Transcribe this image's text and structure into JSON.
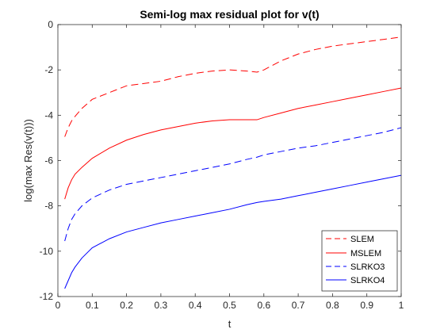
{
  "chart_data": {
    "type": "line",
    "title": "Semi-log max residual plot for v(t)",
    "xlabel": "t",
    "ylabel": "log(max Res(v(t)))",
    "xlim": [
      0,
      1
    ],
    "ylim": [
      -12,
      0
    ],
    "xticks": [
      "0",
      "0.1",
      "0.2",
      "0.3",
      "0.4",
      "0.5",
      "0.6",
      "0.7",
      "0.8",
      "0.9",
      "1"
    ],
    "yticks": [
      "-12",
      "-10",
      "-8",
      "-6",
      "-4",
      "-2",
      "0"
    ],
    "grid": false,
    "legend_position": "bottom-right",
    "series": [
      {
        "name": "SLEM",
        "color": "#ff0000",
        "dash": "dashed",
        "x": [
          0.02,
          0.03,
          0.04,
          0.05,
          0.07,
          0.1,
          0.15,
          0.2,
          0.25,
          0.3,
          0.35,
          0.4,
          0.45,
          0.5,
          0.55,
          0.58,
          0.6,
          0.65,
          0.7,
          0.75,
          0.8,
          0.85,
          0.9,
          0.95,
          1.0
        ],
        "y": [
          -4.95,
          -4.55,
          -4.25,
          -4.05,
          -3.7,
          -3.3,
          -3.0,
          -2.7,
          -2.6,
          -2.5,
          -2.3,
          -2.15,
          -2.05,
          -2.0,
          -2.05,
          -2.1,
          -2.0,
          -1.6,
          -1.3,
          -1.1,
          -0.95,
          -0.85,
          -0.75,
          -0.65,
          -0.55
        ]
      },
      {
        "name": "MSLEM",
        "color": "#ff0000",
        "dash": "solid",
        "x": [
          0.02,
          0.03,
          0.04,
          0.05,
          0.07,
          0.1,
          0.15,
          0.2,
          0.25,
          0.3,
          0.35,
          0.4,
          0.45,
          0.5,
          0.55,
          0.58,
          0.6,
          0.65,
          0.7,
          0.75,
          0.8,
          0.85,
          0.9,
          0.95,
          1.0
        ],
        "y": [
          -7.7,
          -7.2,
          -6.85,
          -6.6,
          -6.3,
          -5.9,
          -5.45,
          -5.1,
          -4.85,
          -4.65,
          -4.5,
          -4.35,
          -4.25,
          -4.2,
          -4.2,
          -4.2,
          -4.1,
          -3.9,
          -3.7,
          -3.55,
          -3.4,
          -3.25,
          -3.1,
          -2.95,
          -2.8
        ]
      },
      {
        "name": "SLRKO3",
        "color": "#0000ff",
        "dash": "dashed",
        "x": [
          0.02,
          0.03,
          0.04,
          0.05,
          0.07,
          0.1,
          0.15,
          0.2,
          0.25,
          0.3,
          0.35,
          0.4,
          0.45,
          0.5,
          0.55,
          0.58,
          0.6,
          0.65,
          0.7,
          0.75,
          0.8,
          0.85,
          0.9,
          0.95,
          1.0
        ],
        "y": [
          -9.55,
          -9.0,
          -8.6,
          -8.35,
          -8.0,
          -7.65,
          -7.3,
          -7.05,
          -6.9,
          -6.75,
          -6.6,
          -6.45,
          -6.3,
          -6.15,
          -5.95,
          -5.85,
          -5.75,
          -5.6,
          -5.45,
          -5.35,
          -5.2,
          -5.05,
          -4.9,
          -4.75,
          -4.55
        ]
      },
      {
        "name": "SLRKO4",
        "color": "#0000ff",
        "dash": "solid",
        "x": [
          0.02,
          0.03,
          0.04,
          0.05,
          0.07,
          0.1,
          0.15,
          0.2,
          0.25,
          0.3,
          0.35,
          0.4,
          0.45,
          0.5,
          0.55,
          0.58,
          0.6,
          0.65,
          0.7,
          0.75,
          0.8,
          0.85,
          0.9,
          0.95,
          1.0
        ],
        "y": [
          -11.65,
          -11.3,
          -10.95,
          -10.7,
          -10.3,
          -9.85,
          -9.45,
          -9.15,
          -8.95,
          -8.75,
          -8.6,
          -8.45,
          -8.3,
          -8.15,
          -7.95,
          -7.85,
          -7.8,
          -7.7,
          -7.55,
          -7.4,
          -7.25,
          -7.1,
          -6.95,
          -6.8,
          -6.65
        ]
      }
    ]
  }
}
